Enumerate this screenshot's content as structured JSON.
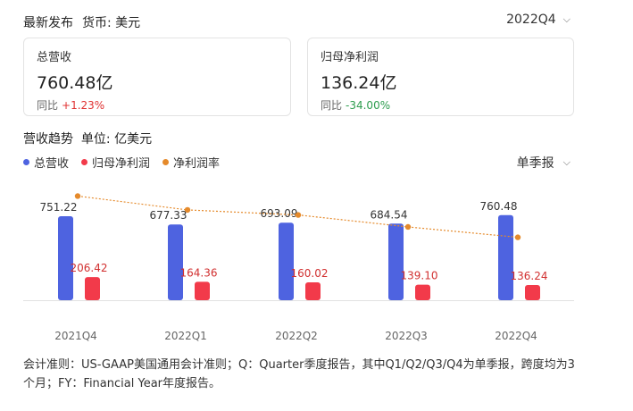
{
  "header": {
    "title": "最新发布",
    "currency": "货币: 美元",
    "period": "2022Q4"
  },
  "cards": [
    {
      "label": "总营收",
      "value": "760.48亿",
      "yoy_label": "同比",
      "yoy_value": "+1.23%",
      "yoy_dir": "pos"
    },
    {
      "label": "归母净利润",
      "value": "136.24亿",
      "yoy_label": "同比",
      "yoy_value": "-34.00%",
      "yoy_dir": "neg"
    }
  ],
  "trend": {
    "title": "营收趋势",
    "unit": "单位: 亿美元",
    "frequency": "单季报"
  },
  "colors": {
    "revenue": "#4e63e0",
    "profit": "#f23a4a",
    "margin": "#e58a2b"
  },
  "chart_data": {
    "type": "bar",
    "categories": [
      "2021Q4",
      "2022Q1",
      "2022Q2",
      "2022Q3",
      "2022Q4"
    ],
    "series": [
      {
        "name": "总营收",
        "values": [
          751.22,
          677.33,
          693.09,
          684.54,
          760.48
        ],
        "labels": [
          "751.22",
          "677.33",
          "693.09",
          "684.54",
          "760.48"
        ]
      },
      {
        "name": "归母净利润",
        "values": [
          206.42,
          164.36,
          160.02,
          139.1,
          136.24
        ],
        "labels": [
          "206.42",
          "164.36",
          "160.02",
          "139.10",
          "136.24"
        ]
      },
      {
        "name": "净利润率",
        "type": "line",
        "values": [
          27.48,
          24.27,
          23.09,
          20.32,
          17.91
        ]
      }
    ],
    "grid": false,
    "legend": "top-left"
  },
  "footnote": "会计准则：US-GAAP美国通用会计准则；Q：Quarter季度报告，其中Q1/Q2/Q3/Q4为单季报，跨度均为3个月；FY：Financial Year年度报告。"
}
